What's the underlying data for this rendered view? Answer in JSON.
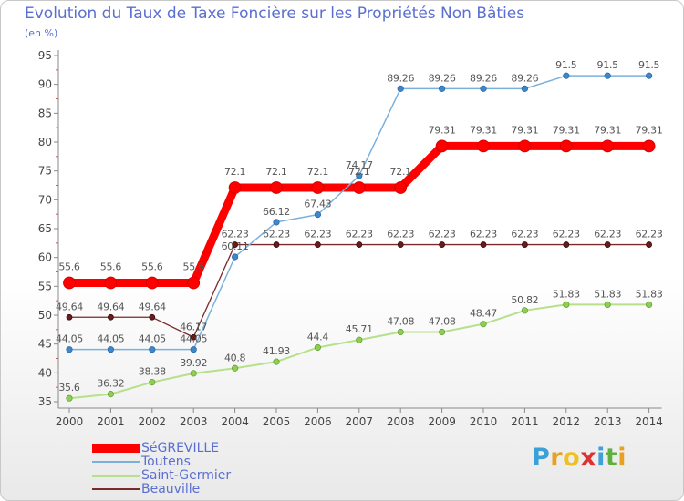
{
  "chart_data": {
    "type": "line",
    "title": "Evolution du Taux de Taxe Foncière sur les Propriétés Non Bâties",
    "subtitle": "(en %)",
    "xlabel": "",
    "ylabel": "",
    "ylim": [
      35,
      95
    ],
    "y_ticks": [
      35,
      40,
      45,
      50,
      55,
      60,
      65,
      70,
      75,
      80,
      85,
      90,
      95
    ],
    "grid": false,
    "legend_position": "bottom-left",
    "categories": [
      "2000",
      "2001",
      "2002",
      "2003",
      "2004",
      "2005",
      "2006",
      "2007",
      "2008",
      "2009",
      "2010",
      "2011",
      "2012",
      "2013",
      "2014"
    ],
    "series": [
      {
        "name": "SéGREVILLE",
        "color": "#ff0000",
        "marker_color": "#ff0000",
        "labels": [
          "55.6",
          "55.6",
          "55.6",
          "55.6",
          "72.1",
          "72.1",
          "72.1",
          "72.1",
          "72.1",
          "79.31",
          "79.31",
          "79.31",
          "79.31",
          "79.31",
          "79.31"
        ],
        "values": [
          55.6,
          55.6,
          55.6,
          55.6,
          72.1,
          72.1,
          72.1,
          72.1,
          72.1,
          79.31,
          79.31,
          79.31,
          79.31,
          79.31,
          79.31
        ]
      },
      {
        "name": "Toutens",
        "color": "#7ab0dc",
        "marker_color": "#3f88c8",
        "labels": [
          "44.05",
          "44.05",
          "44.05",
          "44.05",
          "60.11",
          "66.12",
          "67.43",
          "74.17",
          "89.26",
          "89.26",
          "89.26",
          "89.26",
          "91.5",
          "91.5",
          "91.5"
        ],
        "values": [
          44.05,
          44.05,
          44.05,
          44.05,
          60.11,
          66.12,
          67.43,
          74.17,
          89.26,
          89.26,
          89.26,
          89.26,
          91.5,
          91.5,
          91.5
        ]
      },
      {
        "name": "Saint-Germier",
        "color": "#b6e08a",
        "marker_color": "#8cd050",
        "labels": [
          "35.6",
          "36.32",
          "38.38",
          "39.92",
          "40.8",
          "41.93",
          "44.4",
          "45.71",
          "47.08",
          "47.08",
          "48.47",
          "50.82",
          "51.83",
          "51.83",
          "51.83"
        ],
        "values": [
          35.6,
          36.32,
          38.38,
          39.92,
          40.8,
          41.93,
          44.4,
          45.71,
          47.08,
          47.08,
          48.47,
          50.82,
          51.83,
          51.83,
          51.83
        ]
      },
      {
        "name": "Beauville",
        "color": "#7a2a2a",
        "marker_color": "#6a1c1c",
        "labels": [
          "49.64",
          "49.64",
          "49.64",
          "46.17",
          "62.23",
          "62.23",
          "62.23",
          "62.23",
          "62.23",
          "62.23",
          "62.23",
          "62.23",
          "62.23",
          "62.23",
          "62.23"
        ],
        "values": [
          49.64,
          49.64,
          49.64,
          46.17,
          62.23,
          62.23,
          62.23,
          62.23,
          62.23,
          62.23,
          62.23,
          62.23,
          62.23,
          62.23,
          62.23
        ]
      }
    ]
  },
  "brand": {
    "letters": [
      {
        "char": "P",
        "color": "#3aa0d8"
      },
      {
        "char": "r",
        "color": "#e8a020"
      },
      {
        "char": "o",
        "color": "#f0c020"
      },
      {
        "char": "x",
        "color": "#e03030"
      },
      {
        "char": "i",
        "color": "#40a0d8"
      },
      {
        "char": "t",
        "color": "#60b040"
      },
      {
        "char": "i",
        "color": "#e8a020"
      }
    ]
  }
}
